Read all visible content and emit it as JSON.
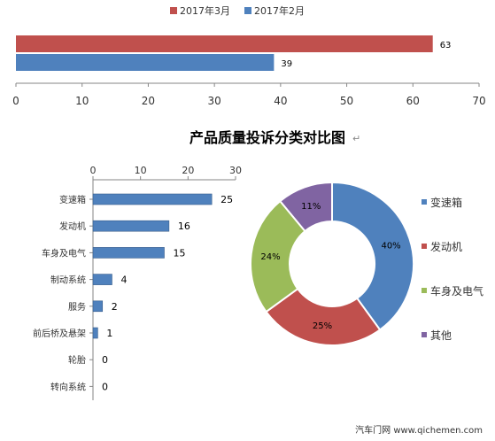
{
  "title": "产品质量投诉分类对比图",
  "title_mark": "↵",
  "watermark": "汽车门网 www.qichemen.com",
  "colors": {
    "red": "#c0504d",
    "blue": "#4f81bd",
    "green": "#9bbb59",
    "purple": "#8064a2"
  },
  "chart_data": [
    {
      "type": "bar",
      "orientation": "horizontal",
      "series": [
        {
          "name": "2017年3月",
          "values": [
            63
          ],
          "color": "#c0504d"
        },
        {
          "name": "2017年2月",
          "values": [
            39
          ],
          "color": "#4f81bd"
        }
      ],
      "x_ticks": [
        0,
        10,
        20,
        30,
        40,
        50,
        60,
        70
      ],
      "xlim": [
        0,
        70
      ],
      "legend_position": "top",
      "grid": false
    },
    {
      "type": "bar",
      "orientation": "horizontal",
      "categories": [
        "变速箱",
        "发动机",
        "车身及电气",
        "制动系统",
        "服务",
        "前后桥及悬架",
        "轮胎",
        "转向系统"
      ],
      "values": [
        25,
        16,
        15,
        4,
        2,
        1,
        0,
        0
      ],
      "x_ticks": [
        0,
        10,
        20,
        30
      ],
      "xlim": [
        0,
        30
      ],
      "x_axis_position": "top",
      "color": "#4f81bd",
      "grid": false
    },
    {
      "type": "pie",
      "style": "donut",
      "categories": [
        "变速箱",
        "发动机",
        "车身及电气",
        "其他"
      ],
      "values": [
        40,
        25,
        24,
        11
      ],
      "labels": [
        "40%",
        "25%",
        "24%",
        "11%"
      ],
      "colors": [
        "#4f81bd",
        "#c0504d",
        "#9bbb59",
        "#8064a2"
      ],
      "legend_position": "right"
    }
  ]
}
